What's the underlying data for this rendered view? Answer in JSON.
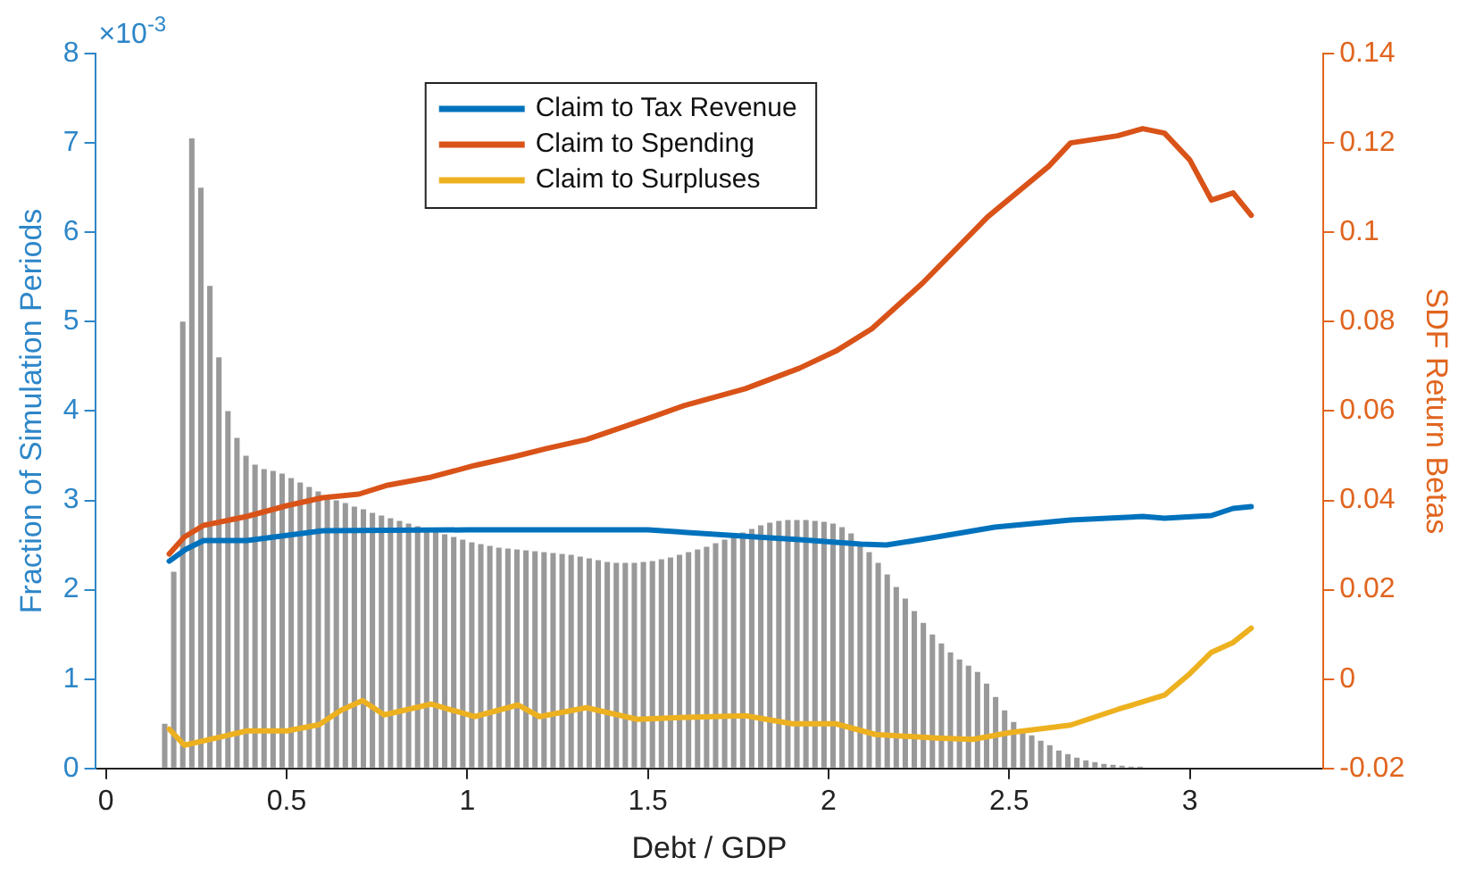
{
  "chart_data": {
    "type": "histogram",
    "xlabel": "Debt / GDP",
    "ylabel": "Fraction of Simulation Periods",
    "y2label": "SDF Return Betas",
    "annotations": [
      "×10$^{-3}$"
    ],
    "bins": [
      0.15,
      0.175,
      0.2,
      0.225,
      0.25,
      0.275,
      0.3,
      0.325,
      0.35,
      0.375,
      0.4,
      0.425,
      0.45,
      0.475,
      0.5,
      0.525,
      0.55,
      0.575,
      0.6,
      0.625,
      0.65,
      0.675,
      0.7,
      0.725,
      0.75,
      0.775,
      0.8,
      0.825,
      0.85,
      0.875,
      0.9,
      0.925,
      0.95,
      0.975,
      1.0,
      1.025,
      1.05,
      1.075,
      1.1,
      1.125,
      1.15,
      1.175,
      1.2,
      1.225,
      1.25,
      1.275,
      1.3,
      1.325,
      1.35,
      1.375,
      1.4,
      1.425,
      1.45,
      1.475,
      1.5,
      1.525,
      1.55,
      1.575,
      1.6,
      1.625,
      1.65,
      1.675,
      1.7,
      1.725,
      1.75,
      1.775,
      1.8,
      1.825,
      1.85,
      1.875,
      1.9,
      1.925,
      1.95,
      1.975,
      2.0,
      2.025,
      2.05,
      2.075,
      2.1,
      2.125,
      2.15,
      2.175,
      2.2,
      2.225,
      2.25,
      2.275,
      2.3,
      2.325,
      2.35,
      2.375,
      2.4,
      2.425,
      2.45,
      2.475,
      2.5,
      2.525,
      2.55,
      2.575,
      2.6,
      2.625,
      2.65,
      2.675,
      2.7,
      2.725,
      2.75,
      2.775,
      2.8,
      2.825,
      2.85,
      2.875,
      2.9,
      2.925,
      2.95
    ],
    "values": [
      0.5,
      2.2,
      5.0,
      7.05,
      6.5,
      5.4,
      4.6,
      4.0,
      3.7,
      3.5,
      3.4,
      3.35,
      3.33,
      3.3,
      3.25,
      3.2,
      3.15,
      3.1,
      3.05,
      3.0,
      2.97,
      2.93,
      2.9,
      2.86,
      2.83,
      2.8,
      2.77,
      2.74,
      2.71,
      2.68,
      2.65,
      2.62,
      2.59,
      2.56,
      2.53,
      2.51,
      2.49,
      2.47,
      2.46,
      2.45,
      2.44,
      2.43,
      2.42,
      2.41,
      2.4,
      2.39,
      2.37,
      2.35,
      2.33,
      2.31,
      2.3,
      2.3,
      2.3,
      2.31,
      2.32,
      2.34,
      2.36,
      2.39,
      2.42,
      2.45,
      2.48,
      2.52,
      2.56,
      2.6,
      2.64,
      2.68,
      2.72,
      2.75,
      2.77,
      2.78,
      2.78,
      2.78,
      2.77,
      2.76,
      2.74,
      2.7,
      2.63,
      2.53,
      2.42,
      2.3,
      2.17,
      2.03,
      1.9,
      1.76,
      1.63,
      1.5,
      1.4,
      1.3,
      1.22,
      1.15,
      1.08,
      0.95,
      0.8,
      0.65,
      0.52,
      0.44,
      0.37,
      0.31,
      0.26,
      0.2,
      0.16,
      0.12,
      0.09,
      0.07,
      0.05,
      0.04,
      0.03,
      0.02,
      0.02,
      0.01,
      0.01,
      0.01
    ],
    "color": "#999999",
    "series": [
      {
        "name": "Claim to Tax Revenue",
        "type": "line",
        "axis": "y2",
        "color": "#0072bd",
        "x": [
          0.175,
          0.22,
          0.27,
          0.39,
          0.6,
          1.0,
          1.5,
          1.8,
          1.92,
          2.09,
          2.16,
          2.3,
          2.46,
          2.67,
          2.87,
          2.93,
          3.06,
          3.12,
          3.17
        ],
        "values": [
          0.0264,
          0.029,
          0.031,
          0.031,
          0.0332,
          0.0334,
          0.0334,
          0.0318,
          0.0312,
          0.0302,
          0.03,
          0.0318,
          0.034,
          0.0356,
          0.0364,
          0.036,
          0.0366,
          0.0382,
          0.0386
        ]
      },
      {
        "name": "Claim to Spending",
        "type": "line",
        "axis": "y2",
        "color": "#d95319",
        "x": [
          0.175,
          0.217,
          0.27,
          0.39,
          0.5,
          0.6,
          0.7,
          0.78,
          0.9,
          1.02,
          1.13,
          1.22,
          1.33,
          1.51,
          1.6,
          1.77,
          1.92,
          2.02,
          2.12,
          2.26,
          2.44,
          2.61,
          2.67,
          2.8,
          2.87,
          2.93,
          3.0,
          3.06,
          3.12,
          3.17
        ],
        "values": [
          0.028,
          0.0318,
          0.0344,
          0.0364,
          0.0388,
          0.0406,
          0.0414,
          0.0434,
          0.0452,
          0.0478,
          0.0498,
          0.0516,
          0.0536,
          0.0586,
          0.0612,
          0.065,
          0.0696,
          0.0734,
          0.0784,
          0.0886,
          0.1034,
          0.1148,
          0.12,
          0.1216,
          0.1232,
          0.1222,
          0.1162,
          0.1072,
          0.1088,
          0.1038
        ]
      },
      {
        "name": "Claim to Surpluses",
        "type": "line",
        "axis": "y2",
        "color": "#edb120",
        "x": [
          0.175,
          0.217,
          0.39,
          0.5,
          0.59,
          0.65,
          0.71,
          0.77,
          0.9,
          1.02,
          1.14,
          1.2,
          1.33,
          1.47,
          1.59,
          1.77,
          1.9,
          2.02,
          2.13,
          2.3,
          2.4,
          2.5,
          2.67,
          2.8,
          2.93,
          3.0,
          3.06,
          3.12,
          3.17
        ],
        "values": [
          -0.0112,
          -0.0148,
          -0.0116,
          -0.0116,
          -0.0102,
          -0.007,
          -0.0048,
          -0.008,
          -0.0056,
          -0.0084,
          -0.0058,
          -0.0084,
          -0.0064,
          -0.009,
          -0.0086,
          -0.0082,
          -0.01,
          -0.01,
          -0.0124,
          -0.0132,
          -0.0135,
          -0.012,
          -0.0103,
          -0.0068,
          -0.0036,
          0.0012,
          0.006,
          0.0082,
          0.0114
        ]
      }
    ],
    "xlim": [
      -0.03,
      3.37
    ],
    "xticks": [
      0,
      0.5,
      1,
      1.5,
      2,
      2.5,
      3
    ],
    "ylim": [
      0,
      8
    ],
    "yticks": [
      0,
      1,
      2,
      3,
      4,
      5,
      6,
      7,
      8
    ],
    "y2lim": [
      -0.02,
      0.14
    ],
    "y2ticks": [
      -0.02,
      0,
      0.02,
      0.04,
      0.06,
      0.08,
      0.1,
      0.12,
      0.14
    ],
    "grid": false,
    "legend": "top",
    "marker": "none",
    "line_style": "solid"
  }
}
